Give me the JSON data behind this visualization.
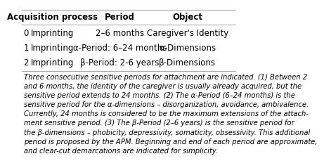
{
  "headers": [
    "",
    "Acquisition process",
    "Period",
    "Object"
  ],
  "rows": [
    [
      "0",
      "Imprinting",
      "2–6 months",
      "Caregiver's Identity"
    ],
    [
      "1",
      "Imprinting",
      "α-Period: 6–24 months",
      "α-Dimensions"
    ],
    [
      "2",
      "Imprinting",
      "β-Period: 2-6 years",
      "β-Dimensions"
    ]
  ],
  "footnote": "Three consecutive sensitive periods for attachment are indicated. (1) Between 2\nand 6 months, the identity of the caregiver is usually already acquired, but the\nsensitive period extends to 24 months. (2) The α-Period (6–24 months) is the\nsensitive period for the α-dimensions – disorganization, avoidance, ambivalence.\nCurrently, 24 months is considered to be the maximum extensions of the attach-\nment sensitive period. (3) The β-Period (2–6 years) is the sensitive period for\nthe β-dimensions – phobicity, depressivity, somaticity, obsessivity. This additional\nperiod is proposed by the APM. Beginning and end of each period are approximate,\nand clear-cut demarcations are indicated for simplicity.",
  "background_color": "#ffffff",
  "header_fontsize": 8.5,
  "cell_fontsize": 8.5,
  "footnote_fontsize": 7.2,
  "header_color": "#000000",
  "cell_color": "#000000",
  "line_color": "#aaaaaa"
}
